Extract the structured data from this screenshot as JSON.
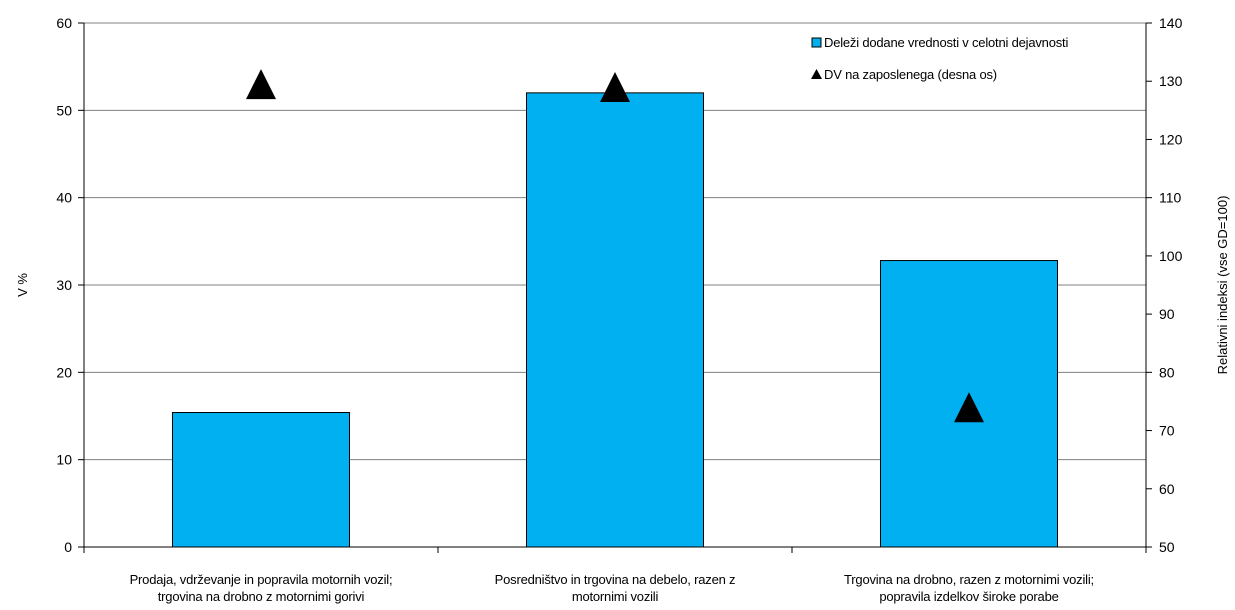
{
  "chart_data": {
    "type": "bar",
    "categories": [
      [
        "Prodaja, vdrževanje in popravila motornih vozil;",
        "trgovina na drobno z motornimi gorivi"
      ],
      [
        "Posredništvo in trgovina na debelo, razen z",
        "motornimi vozili"
      ],
      [
        "Trgovina na drobno, razen z motornimi vozili;",
        "popravila izdelkov široke porabe"
      ]
    ],
    "series": [
      {
        "name": "Deleži dodane vrednosti v celotni dejavnosti",
        "axis": "left",
        "kind": "bar",
        "color": "#00b0f0",
        "values": [
          15.4,
          52.0,
          32.8
        ]
      },
      {
        "name": "DV na zaposlenega (desna os)",
        "axis": "right",
        "kind": "marker-triangle",
        "color": "#000000",
        "values": [
          129.5,
          129.0,
          74.0
        ]
      }
    ],
    "ylabel": "V %",
    "ylabel_right": "Relativni indeksi (vse GD=100)",
    "ylim": [
      0,
      60
    ],
    "ylim_right": [
      50,
      140
    ],
    "yticks": [
      "0",
      "10",
      "20",
      "30",
      "40",
      "50",
      "60"
    ],
    "yticks_right": [
      "50",
      "60",
      "70",
      "80",
      "90",
      "100",
      "110",
      "120",
      "130",
      "140"
    ],
    "grid": true,
    "legend_position": "top-right"
  }
}
